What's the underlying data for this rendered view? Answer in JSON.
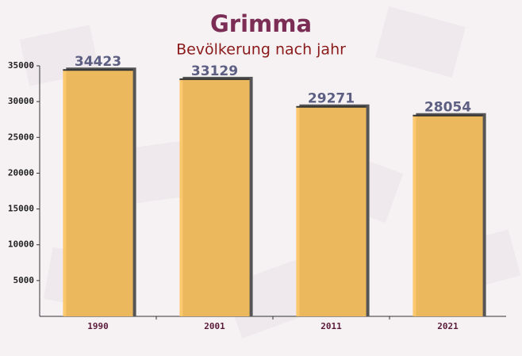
{
  "chart_data": {
    "type": "bar",
    "title": "Grimma",
    "subtitle": "Bevölkerung nach jahr",
    "categories": [
      "1990",
      "2001",
      "2011",
      "2021"
    ],
    "values": [
      34423,
      33129,
      29271,
      28054
    ],
    "color": "#fcc35e",
    "ylim": [
      0,
      35000
    ],
    "yticks": [
      5000,
      10000,
      15000,
      20000,
      25000,
      30000,
      35000
    ]
  }
}
